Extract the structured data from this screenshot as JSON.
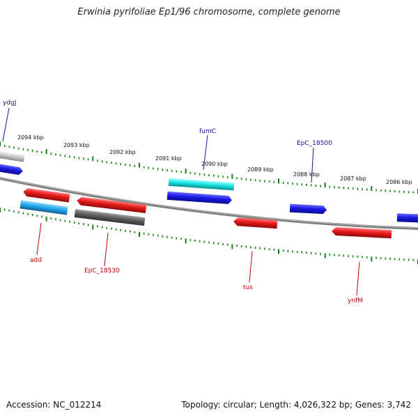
{
  "title": "Erwinia pyrifoliae Ep1/96 chromosome, complete genome",
  "footer": {
    "accession_label": "Accession:",
    "accession": "NC_012214",
    "topology_text": "Topology: circular; Length: 4,026,322 bp; Genes: 3,742"
  },
  "colors": {
    "forward_gene": "#1a1ae6",
    "reverse_gene": "#e61a1a",
    "cyan_gene": "#1ae6e6",
    "gray_gene": "#606060",
    "light_gray_gene": "#c8c8c8",
    "tick": "#108010",
    "label_top": "#1010a0",
    "label_bottom": "#c00000"
  },
  "kbp_labels": [
    "2094 kbp",
    "2093 kbp",
    "2092 kbp",
    "2091 kbp",
    "2090 kbp",
    "2089 kbp",
    "2088 kbp",
    "2087 kbp",
    "2086 kbp"
  ],
  "gene_labels_top": [
    "ydgJ",
    "fumC",
    "EpC_18500"
  ],
  "gene_labels_bottom": [
    "add",
    "EpC_18530",
    "tus",
    "ynfM"
  ]
}
